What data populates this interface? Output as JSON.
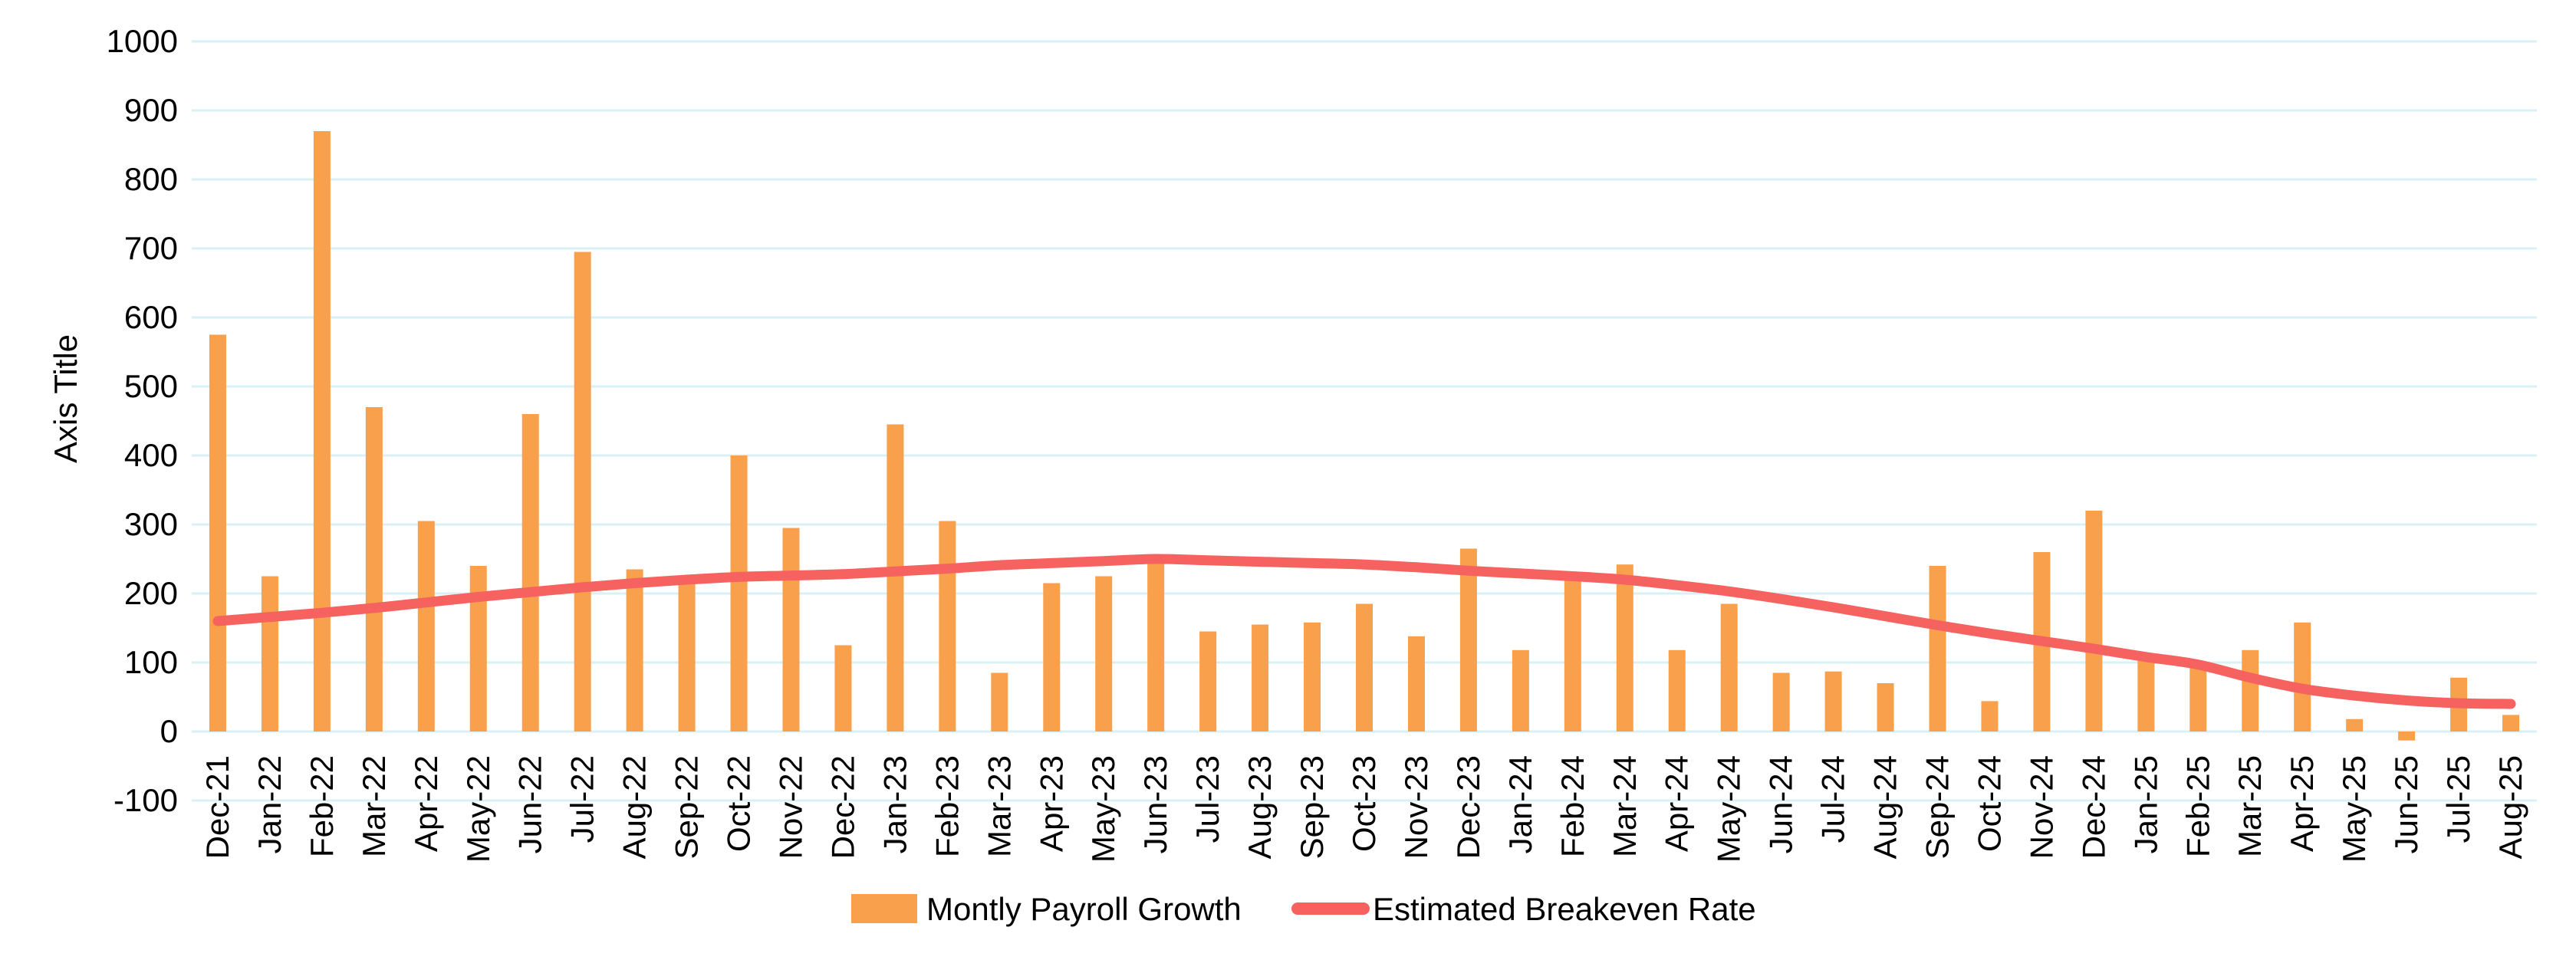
{
  "chart": {
    "axis_title": "Axis Title",
    "legend": {
      "bar_label": "Montly Payroll Growth",
      "line_label": "Estimated Breakeven Rate"
    },
    "colors": {
      "bar": "#F9A04C",
      "line": "#F5625F",
      "gridline": "#D9F1F6",
      "text": "#000000",
      "background": "#FFFFFF"
    }
  },
  "chart_data": {
    "type": "bar",
    "combo": "bar+line",
    "title": "",
    "xlabel": "",
    "ylabel": "Axis Title",
    "ylim": [
      -100,
      1000
    ],
    "ytick_step": 100,
    "grid": true,
    "legend_position": "bottom",
    "categories": [
      "Dec-21",
      "Jan-22",
      "Feb-22",
      "Mar-22",
      "Apr-22",
      "May-22",
      "Jun-22",
      "Jul-22",
      "Aug-22",
      "Sep-22",
      "Oct-22",
      "Nov-22",
      "Dec-22",
      "Jan-23",
      "Feb-23",
      "Mar-23",
      "Apr-23",
      "May-23",
      "Jun-23",
      "Jul-23",
      "Aug-23",
      "Sep-23",
      "Oct-23",
      "Nov-23",
      "Dec-23",
      "Jan-24",
      "Feb-24",
      "Mar-24",
      "Apr-24",
      "May-24",
      "Jun-24",
      "Jul-24",
      "Aug-24",
      "Sep-24",
      "Oct-24",
      "Nov-24",
      "Dec-24",
      "Jan-25",
      "Feb-25",
      "Mar-25",
      "Apr-25",
      "May-25",
      "Jun-25",
      "Jul-25",
      "Aug-25"
    ],
    "series": [
      {
        "name": "Montly Payroll Growth",
        "type": "bar",
        "color": "#F9A04C",
        "values": [
          575,
          225,
          870,
          470,
          305,
          240,
          460,
          695,
          235,
          215,
          400,
          295,
          125,
          445,
          305,
          85,
          215,
          225,
          255,
          145,
          155,
          158,
          185,
          138,
          265,
          118,
          220,
          242,
          118,
          185,
          85,
          87,
          70,
          240,
          44,
          260,
          320,
          107,
          100,
          118,
          158,
          18,
          -13,
          78,
          24
        ]
      },
      {
        "name": "Estimated Breakeven Rate",
        "type": "line",
        "color": "#F5625F",
        "values": [
          160,
          166,
          172,
          179,
          187,
          195,
          202,
          209,
          215,
          220,
          224,
          226,
          228,
          232,
          236,
          241,
          244,
          247,
          250,
          248,
          246,
          244,
          242,
          238,
          233,
          229,
          225,
          220,
          212,
          203,
          192,
          180,
          167,
          154,
          142,
          131,
          120,
          108,
          97,
          78,
          62,
          52,
          45,
          41,
          40
        ]
      }
    ]
  }
}
